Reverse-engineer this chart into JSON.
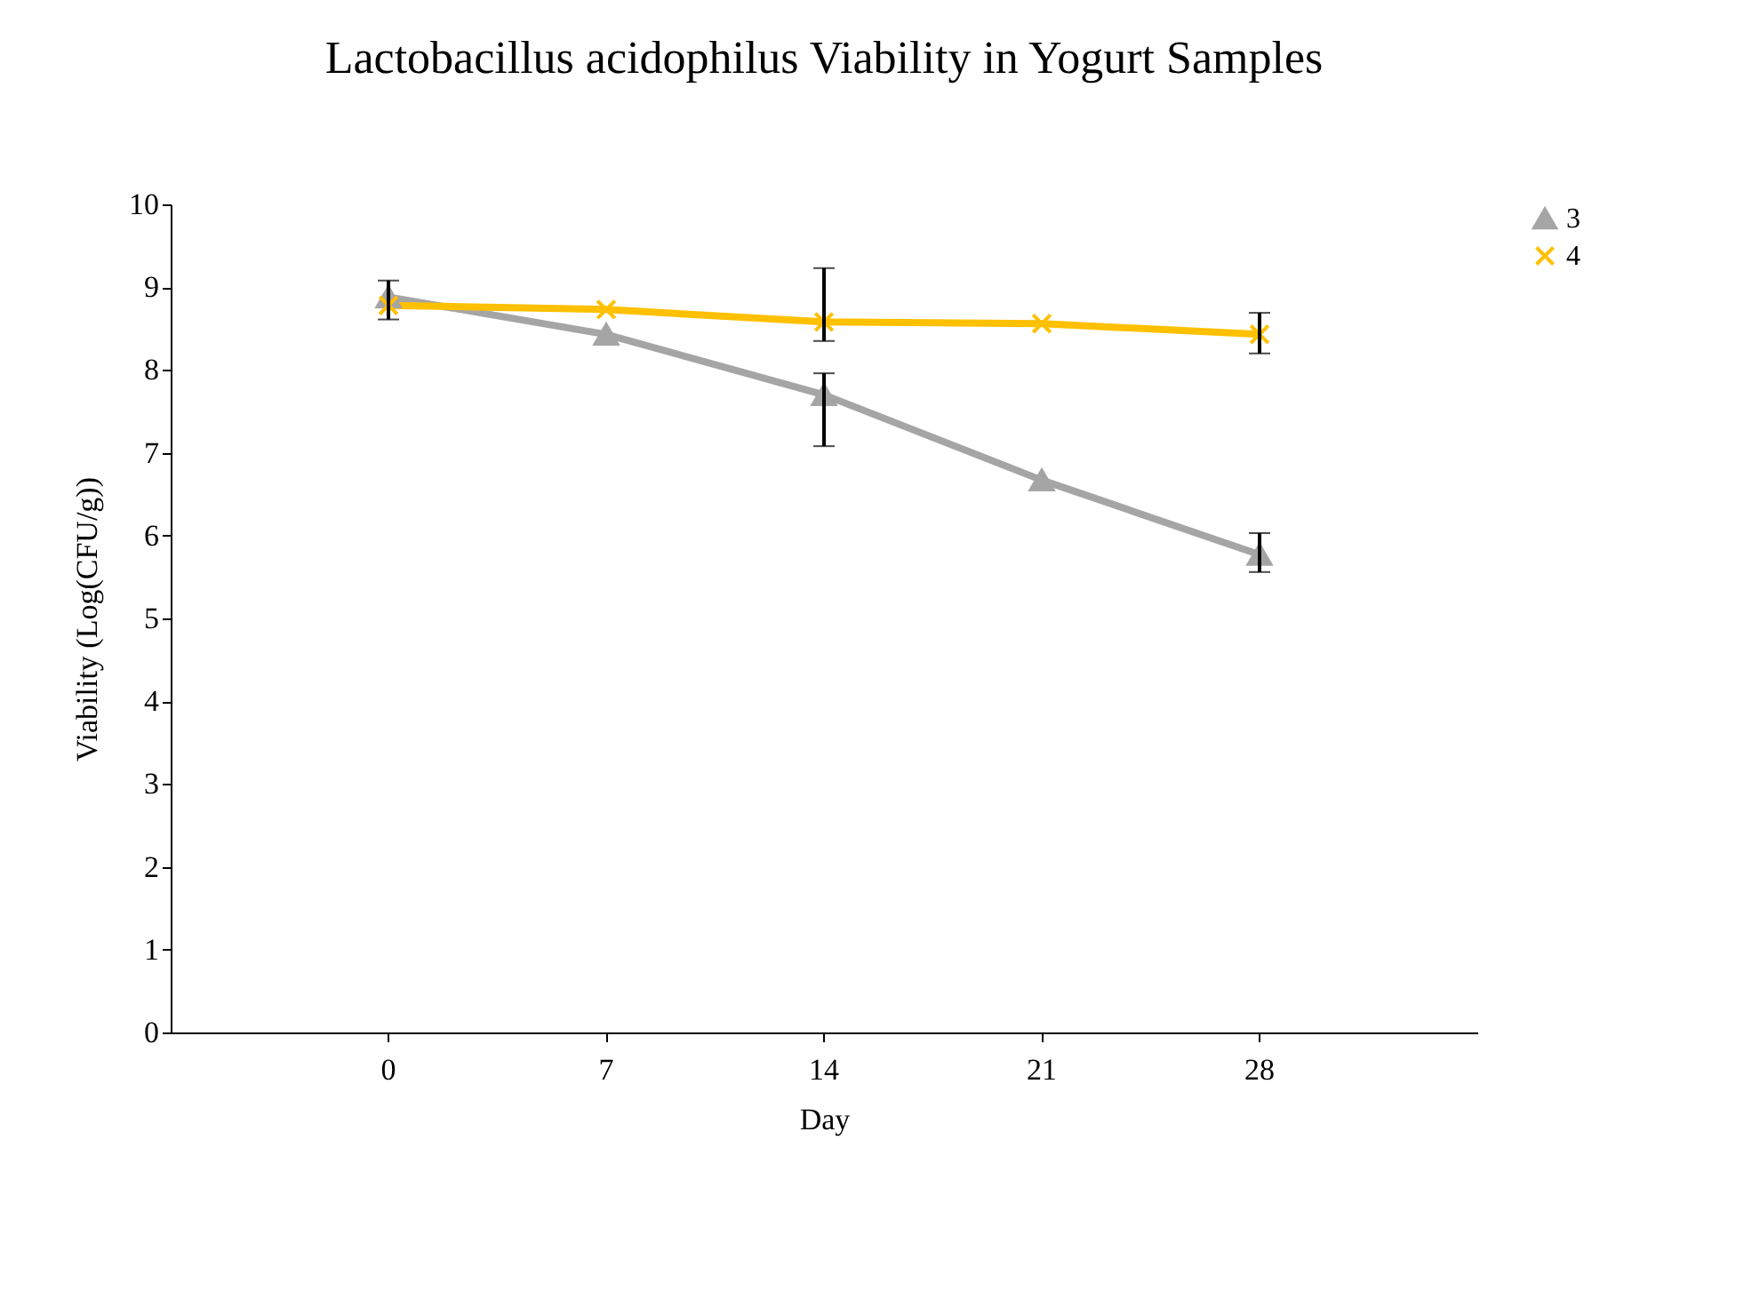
{
  "chart_data": {
    "type": "line",
    "title": "Lactobacillus acidophilus Viability in Yogurt Samples",
    "xlabel": "Day",
    "ylabel": "Viability (Log(CFU/g))",
    "categories": [
      "0",
      "7",
      "14",
      "21",
      "28"
    ],
    "series": [
      {
        "name": "3",
        "color": "#a5a5a5",
        "marker": "triangle",
        "values": [
          8.88,
          8.43,
          7.7,
          6.67,
          5.77
        ],
        "errors": [
          [
            8.61,
            9.08
          ],
          null,
          [
            7.08,
            7.96
          ],
          null,
          [
            5.56,
            6.03
          ]
        ]
      },
      {
        "name": "4",
        "color": "#ffc000",
        "marker": "cross",
        "values": [
          8.78,
          8.73,
          8.58,
          8.56,
          8.43
        ],
        "errors": [
          null,
          null,
          [
            8.35,
            9.23
          ],
          null,
          [
            8.2,
            8.69
          ]
        ]
      }
    ],
    "ylim": [
      0,
      10
    ],
    "yticks": [
      0,
      1,
      2,
      3,
      4,
      5,
      6,
      7,
      8,
      9,
      10
    ],
    "grid": false,
    "legend": "right",
    "line_style": "solid"
  }
}
